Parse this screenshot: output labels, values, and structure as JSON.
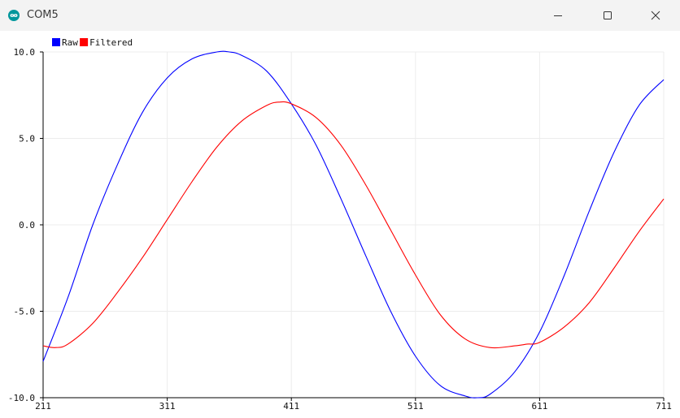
{
  "window": {
    "title": "COM5",
    "app_icon": "infinity-icon",
    "controls": [
      "minimize-icon",
      "maximize-icon",
      "close-icon"
    ]
  },
  "chart_data": {
    "type": "line",
    "title": "",
    "xlabel": "",
    "ylabel": "",
    "xlim": [
      211,
      711
    ],
    "ylim": [
      -10,
      10
    ],
    "x_ticks": [
      211,
      311,
      411,
      511,
      611,
      711
    ],
    "y_ticks": [
      -10,
      -5,
      0,
      5,
      10
    ],
    "x_tick_labels": [
      "211",
      "311",
      "411",
      "511",
      "611",
      "711"
    ],
    "y_tick_labels": [
      "-10.0",
      "-5.0",
      "0.0",
      "5.0",
      "10.0"
    ],
    "grid": true,
    "legend": "top-left",
    "series": [
      {
        "name": "Raw",
        "color": "#0000ff",
        "x": [
          211,
          231,
          251,
          271,
          291,
          311,
          331,
          351,
          361,
          371,
          391,
          411,
          431,
          451,
          471,
          491,
          511,
          531,
          551,
          561,
          571,
          591,
          611,
          631,
          651,
          671,
          691,
          711
        ],
        "y": [
          -7.9,
          -4.2,
          0.0,
          3.5,
          6.5,
          8.5,
          9.6,
          10.0,
          10.0,
          9.8,
          8.9,
          7.0,
          4.6,
          1.5,
          -1.8,
          -5.0,
          -7.6,
          -9.3,
          -9.9,
          -10.0,
          -9.8,
          -8.5,
          -6.2,
          -2.9,
          0.8,
          4.2,
          6.9,
          8.4
        ]
      },
      {
        "name": "Filtered",
        "color": "#ff0000",
        "x": [
          211,
          221,
          231,
          251,
          271,
          291,
          311,
          331,
          351,
          371,
          391,
          401,
          411,
          431,
          451,
          471,
          491,
          511,
          531,
          551,
          571,
          591,
          601,
          611,
          631,
          651,
          671,
          691,
          711
        ],
        "y": [
          -7.0,
          -7.1,
          -6.9,
          -5.7,
          -3.9,
          -1.9,
          0.3,
          2.5,
          4.5,
          6.0,
          6.9,
          7.1,
          7.0,
          6.2,
          4.6,
          2.3,
          -0.3,
          -2.9,
          -5.2,
          -6.6,
          -7.1,
          -7.0,
          -6.9,
          -6.8,
          -5.9,
          -4.5,
          -2.5,
          -0.4,
          1.5
        ]
      }
    ]
  }
}
